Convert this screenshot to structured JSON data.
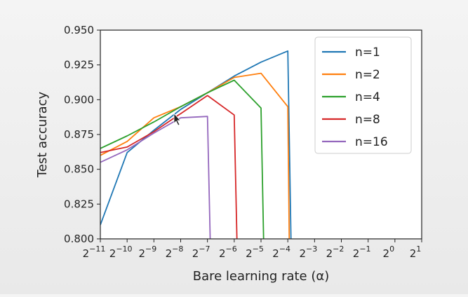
{
  "chart_data": {
    "type": "line",
    "title": "",
    "xlabel": "Bare learning rate (α)",
    "ylabel": "Test accuracy",
    "x_scale": "log2",
    "x_base": "2",
    "x_tick_exponents": [
      "−11",
      "−10",
      "−9",
      "−8",
      "−7",
      "−6",
      "−5",
      "−4",
      "−3",
      "−2",
      "−1",
      "0",
      "1"
    ],
    "x_tick_values": [
      0.00048828125,
      0.0009765625,
      0.001953125,
      0.00390625,
      0.0078125,
      0.015625,
      0.03125,
      0.0625,
      0.125,
      0.25,
      0.5,
      1,
      2
    ],
    "xlim": [
      0.00048828125,
      2
    ],
    "ylim": [
      0.8,
      0.95
    ],
    "y_ticks": [
      "0.800",
      "0.825",
      "0.850",
      "0.875",
      "0.900",
      "0.925",
      "0.950"
    ],
    "grid": false,
    "legend_position": "top-right",
    "series": [
      {
        "name": "n=1",
        "color": "#1f77b4",
        "x": [
          0.00048828125,
          0.0009765625,
          0.001953125,
          0.00390625,
          0.0078125,
          0.015625,
          0.03125,
          0.0625,
          0.068
        ],
        "y": [
          0.81,
          0.862,
          0.878,
          0.893,
          0.905,
          0.917,
          0.927,
          0.935,
          0.797
        ]
      },
      {
        "name": "n=2",
        "color": "#ff7f0e",
        "x": [
          0.00048828125,
          0.0009765625,
          0.001953125,
          0.00390625,
          0.0078125,
          0.015625,
          0.03125,
          0.0625,
          0.065
        ],
        "y": [
          0.86,
          0.87,
          0.887,
          0.895,
          0.905,
          0.916,
          0.919,
          0.895,
          0.797
        ]
      },
      {
        "name": "n=4",
        "color": "#2ca02c",
        "x": [
          0.00048828125,
          0.0009765625,
          0.001953125,
          0.00390625,
          0.0078125,
          0.015625,
          0.03125,
          0.0335
        ],
        "y": [
          0.865,
          0.874,
          0.884,
          0.895,
          0.905,
          0.914,
          0.894,
          0.797
        ]
      },
      {
        "name": "n=8",
        "color": "#d62728",
        "x": [
          0.00048828125,
          0.0009765625,
          0.001953125,
          0.00390625,
          0.0078125,
          0.015625,
          0.0168
        ],
        "y": [
          0.862,
          0.866,
          0.877,
          0.89,
          0.903,
          0.889,
          0.797
        ]
      },
      {
        "name": "n=16",
        "color": "#9467bd",
        "x": [
          0.00048828125,
          0.0009765625,
          0.001953125,
          0.00390625,
          0.0078125,
          0.0084
        ],
        "y": [
          0.855,
          0.864,
          0.876,
          0.887,
          0.888,
          0.797
        ]
      }
    ]
  }
}
